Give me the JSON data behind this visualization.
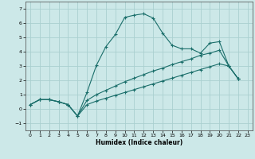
{
  "xlabel": "Humidex (Indice chaleur)",
  "background_color": "#cce8e8",
  "grid_color": "#aad0d0",
  "line_color": "#1a6e6a",
  "xlim": [
    -0.5,
    23.5
  ],
  "ylim": [
    -1.5,
    7.5
  ],
  "xticks": [
    0,
    1,
    2,
    3,
    4,
    5,
    6,
    7,
    8,
    9,
    10,
    11,
    12,
    13,
    14,
    15,
    16,
    17,
    18,
    19,
    20,
    21,
    22,
    23
  ],
  "yticks": [
    -1,
    0,
    1,
    2,
    3,
    4,
    5,
    6,
    7
  ],
  "line1_x": [
    0,
    1,
    2,
    3,
    4,
    5,
    6,
    7,
    8,
    9,
    10,
    11,
    12,
    13,
    14,
    15,
    16,
    17,
    18,
    19,
    20,
    21,
    22
  ],
  "line1_y": [
    0.3,
    0.65,
    0.65,
    0.5,
    0.3,
    -0.5,
    1.15,
    3.05,
    4.35,
    5.2,
    6.4,
    6.55,
    6.65,
    6.35,
    5.3,
    4.45,
    4.2,
    4.2,
    3.9,
    4.6,
    4.7,
    3.0,
    2.1
  ],
  "line2_x": [
    0,
    1,
    2,
    3,
    4,
    5,
    6,
    7,
    8,
    9,
    10,
    11,
    12,
    13,
    14,
    15,
    16,
    17,
    18,
    19,
    20,
    21,
    22
  ],
  "line2_y": [
    0.3,
    0.65,
    0.65,
    0.5,
    0.3,
    -0.5,
    0.6,
    1.0,
    1.3,
    1.6,
    1.9,
    2.15,
    2.4,
    2.65,
    2.85,
    3.1,
    3.3,
    3.5,
    3.75,
    3.9,
    4.1,
    3.0,
    2.1
  ],
  "line3_x": [
    0,
    1,
    2,
    3,
    4,
    5,
    6,
    7,
    8,
    9,
    10,
    11,
    12,
    13,
    14,
    15,
    16,
    17,
    18,
    19,
    20,
    21,
    22
  ],
  "line3_y": [
    0.3,
    0.65,
    0.65,
    0.5,
    0.3,
    -0.5,
    0.3,
    0.55,
    0.75,
    0.95,
    1.15,
    1.35,
    1.55,
    1.75,
    1.95,
    2.15,
    2.35,
    2.55,
    2.75,
    2.95,
    3.15,
    3.0,
    2.1
  ]
}
